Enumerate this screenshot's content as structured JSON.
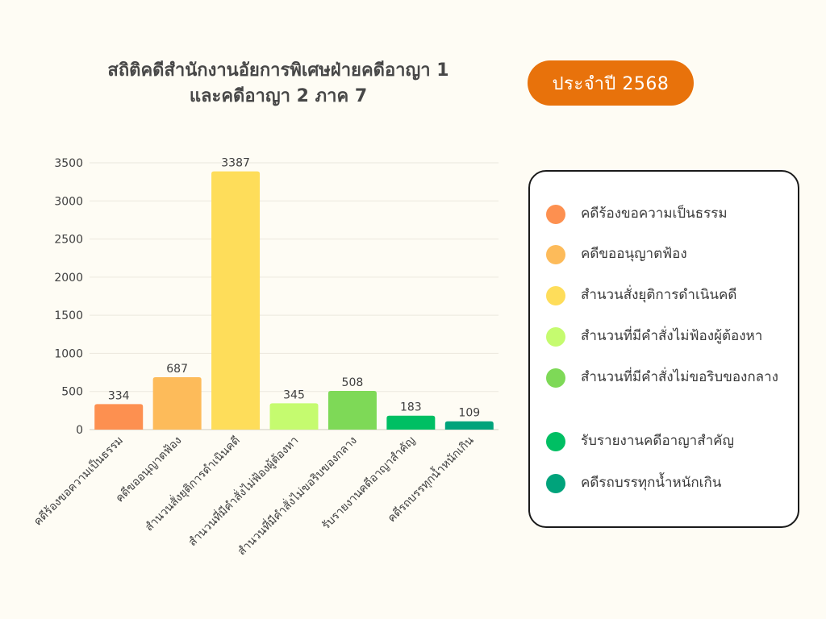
{
  "header": {
    "title_line1": "สถิติคดีสำนักงานอัยการพิเศษฝ่ายคดีอาญา 1",
    "title_line2": "และคดีอาญา 2 ภาค 7",
    "year_badge": "ประจำปี 2568"
  },
  "colors": {
    "background": "#fefcf4",
    "badge": "#e8720b",
    "grid": "#ebe8de"
  },
  "chart_data": {
    "type": "bar",
    "categories": [
      "คดีร้องขอความเป็นธรรม",
      "คดีขออนุญาตฟ้อง",
      "สำนวนสั่งยุติการดำเนินคดี",
      "สำนวนที่มีคำสั่งไม่ฟ้องผู้ต้องหา",
      "สำนวนที่มีคำสั่งไม่ขอริบของกลาง",
      "รับรายงานคดีอาญาสำคัญ",
      "คดีรถบรรทุกน้ำหนักเกิน"
    ],
    "tick_labels": [
      "คดีร้องขอความเป็นธรรม",
      "คดีขออนุญาตฟ้อง",
      "สำนวนสั่งยุติการดำเนินคดี",
      "สำนวนที่มีคำสั่งไม่ฟ้องผู้ต้องหา",
      "สำนวนที่มีคำสั่งไม่ขอริบของกลาง",
      "รับรายงานคดีอาญาสำคัญ",
      "คดีรถบรรทุกน้ำหนักเกิน"
    ],
    "values": [
      334,
      687,
      3387,
      345,
      508,
      183,
      109
    ],
    "bar_colors": [
      "#fd9050",
      "#fdbb5a",
      "#fedd5a",
      "#c5fb6f",
      "#7ed957",
      "#00bf63",
      "#00a37b"
    ],
    "ylim": [
      0,
      3500
    ],
    "yticks": [
      0,
      500,
      1000,
      1500,
      2000,
      2500,
      3000,
      3500
    ],
    "grid": true,
    "legend_placement": "right",
    "legend": [
      "คดีร้องขอความเป็นธรรม",
      "คดีขออนุญาตฟ้อง",
      "สำนวนสั่งยุติการดำเนินคดี",
      "สำนวนที่มีคำสั่งไม่ฟ้องผู้ต้องหา",
      "สำนวนที่มีคำสั่งไม่ขอริบของกลาง",
      "รับรายงานคดีอาญาสำคัญ",
      "คดีรถบรรทุกน้ำหนักเกิน"
    ]
  }
}
